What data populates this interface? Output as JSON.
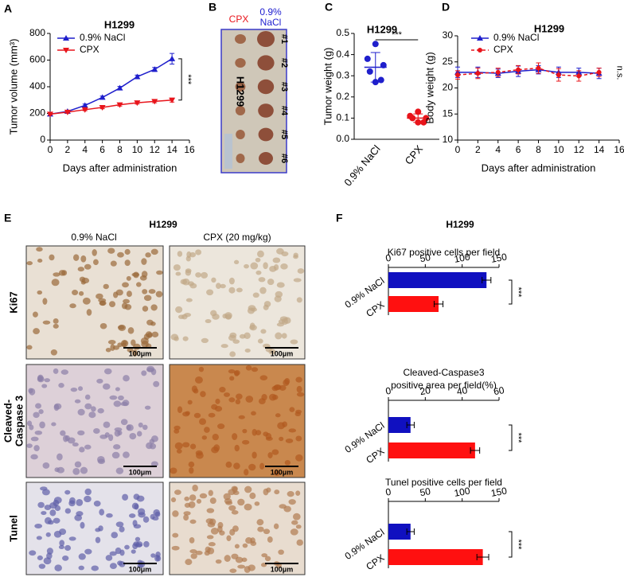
{
  "chart_data": [
    {
      "type": "line",
      "label": "A",
      "title": "H1299",
      "xlabel": "Days after administration",
      "ylabel": "Tumor volume (mm³)",
      "x": [
        0,
        2,
        4,
        6,
        8,
        10,
        12,
        14
      ],
      "xlim": [
        0,
        16
      ],
      "xticks": [
        0,
        2,
        4,
        6,
        8,
        10,
        12,
        14,
        16
      ],
      "ylim": [
        0,
        800
      ],
      "yticks": [
        0,
        200,
        400,
        600,
        800
      ],
      "annotation": "***",
      "series": [
        {
          "name": "0.9% NaCl",
          "color": "#1f1fcc",
          "marker": "triangle-up",
          "values": [
            195,
            215,
            260,
            320,
            390,
            475,
            530,
            610
          ],
          "errors": [
            8,
            8,
            10,
            10,
            12,
            12,
            15,
            40
          ]
        },
        {
          "name": "CPX",
          "color": "#e8141b",
          "marker": "triangle-down",
          "values": [
            195,
            210,
            228,
            245,
            265,
            280,
            290,
            300
          ],
          "errors": [
            8,
            8,
            8,
            10,
            10,
            10,
            10,
            15
          ]
        }
      ]
    },
    {
      "type": "dot",
      "label": "C",
      "title": "H1299",
      "ylabel": "Tumor weight (g)",
      "categories": [
        "0.9% NaCl",
        "CPX"
      ],
      "colors": [
        "#1f1fcc",
        "#e8141b"
      ],
      "values": [
        [
          0.45,
          0.38,
          0.35,
          0.32,
          0.28,
          0.27
        ],
        [
          0.13,
          0.11,
          0.1,
          0.1,
          0.08,
          0.08
        ]
      ],
      "means": [
        0.34,
        0.1
      ],
      "errors": [
        0.07,
        0.02
      ],
      "ylim": [
        0,
        0.5
      ],
      "yticks": [
        {
          "value": 0,
          "label": "0.0"
        },
        0.1,
        0.2,
        0.3,
        0.4,
        0.5
      ],
      "annotation": "***"
    },
    {
      "type": "line",
      "label": "D",
      "title": "H1299",
      "xlabel": "Days after administration",
      "ylabel": "Body weight (g)",
      "x": [
        0,
        2,
        4,
        6,
        8,
        10,
        12,
        14
      ],
      "xlim": [
        0,
        16
      ],
      "xticks": [
        0,
        2,
        4,
        6,
        8,
        10,
        12,
        14,
        16
      ],
      "ylim": [
        10,
        30
      ],
      "yticks": [
        10,
        15,
        20,
        25,
        30
      ],
      "annotation": "n.s.",
      "series": [
        {
          "name": "0.9% NaCl",
          "color": "#1f1fcc",
          "marker": "triangle-up",
          "values": [
            23,
            23,
            22.8,
            23.2,
            23.5,
            23,
            23,
            22.8
          ],
          "errors": [
            1,
            1,
            0.8,
            1,
            0.8,
            1,
            0.8,
            1
          ]
        },
        {
          "name": "CPX",
          "color": "#e8141b",
          "marker": "circle",
          "dash": true,
          "values": [
            22.5,
            22.8,
            23,
            23.5,
            23.8,
            22.5,
            22.3,
            23
          ],
          "errors": [
            0.8,
            1,
            0.8,
            0.8,
            1,
            1.2,
            1,
            0.8
          ]
        }
      ]
    },
    {
      "type": "hbar",
      "title": [
        "Ki67 positive cells per field"
      ],
      "categories": [
        "0.9% NaCl",
        "CPX"
      ],
      "colors": [
        "#1010c0",
        "#ff1010"
      ],
      "values": [
        133,
        68
      ],
      "errors": [
        6,
        6
      ],
      "xlim": [
        0,
        150
      ],
      "xticks": [
        0,
        50,
        100,
        150
      ],
      "annotation": "***"
    },
    {
      "type": "hbar",
      "title": [
        "Cleaved-Caspase3",
        "positive area per field(%)"
      ],
      "categories": [
        "0.9% NaCl",
        "CPX"
      ],
      "colors": [
        "#1010c0",
        "#ff1010"
      ],
      "values": [
        12,
        47
      ],
      "errors": [
        2,
        2.5
      ],
      "xlim": [
        0,
        60
      ],
      "xticks": [
        0,
        20,
        40,
        60
      ],
      "annotation": "***"
    },
    {
      "type": "hbar",
      "title": [
        "Tunel positive cells per field"
      ],
      "categories": [
        "0.9% NaCl",
        "CPX"
      ],
      "colors": [
        "#1010c0",
        "#ff1010"
      ],
      "values": [
        30,
        128
      ],
      "errors": [
        5,
        8
      ],
      "xlim": [
        0,
        150
      ],
      "xticks": [
        0,
        50,
        100,
        150
      ],
      "annotation": "***"
    }
  ],
  "images": {
    "B": {
      "label": "B",
      "columns": [
        "CPX",
        "0.9%",
        "NaCl"
      ],
      "sample": "H1299",
      "rows": [
        "#1",
        "#2",
        "#3",
        "#4",
        "#5",
        "#6"
      ]
    },
    "E": {
      "label": "E",
      "title": "H1299",
      "columns": [
        "0.9% NaCl",
        "CPX (20 mg/kg)"
      ],
      "rows": [
        "Ki67",
        "Cleaved-",
        "Caspase 3",
        "Tunel"
      ],
      "scale_bars": [
        "100μm",
        "100μm",
        "100μm",
        "100μm",
        "100μm",
        "100μm"
      ]
    }
  },
  "panel_f": {
    "label": "F",
    "title": "H1299"
  }
}
